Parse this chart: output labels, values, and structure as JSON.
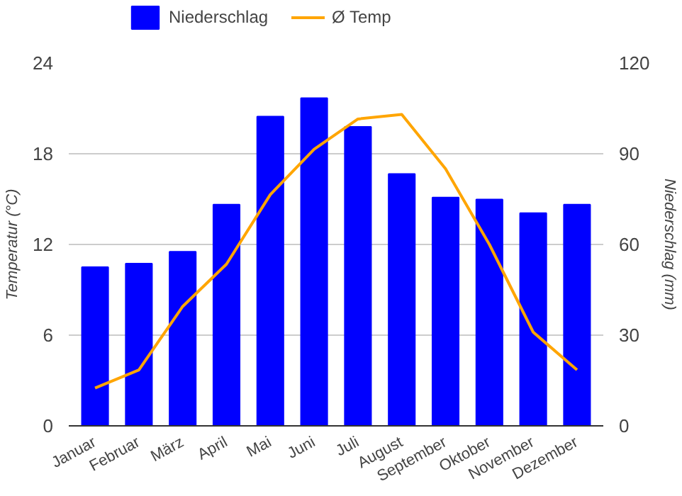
{
  "chart_data": {
    "type": "bar",
    "categories": [
      "Januar",
      "Februar",
      "März",
      "April",
      "Mai",
      "Juni",
      "Juli",
      "August",
      "September",
      "Oktober",
      "November",
      "Dezember"
    ],
    "series": [
      {
        "name": "Niederschlag",
        "axis": "y2",
        "color": "#0000ff",
        "values": [
          52.5,
          53.7,
          57.6,
          73.2,
          102.3,
          108.4,
          98.9,
          83.3,
          75.5,
          74.9,
          70.4,
          73.2
        ]
      },
      {
        "name": "Ø Temp",
        "type": "line",
        "color": "#ffa500",
        "values": [
          2.5,
          3.7,
          7.9,
          10.7,
          15.3,
          18.3,
          20.3,
          20.6,
          17.0,
          12.0,
          6.2,
          3.7
        ]
      }
    ],
    "ylabel": "Temperatur (°C)",
    "y2label": "Niederschlag (mm)",
    "ylim": [
      0,
      24
    ],
    "yticks": [
      0,
      6,
      12,
      18,
      24
    ],
    "y2lim": [
      0,
      120
    ],
    "y2ticks": [
      0,
      30,
      60,
      90,
      120
    ],
    "grid": "y",
    "legend": "top left"
  }
}
